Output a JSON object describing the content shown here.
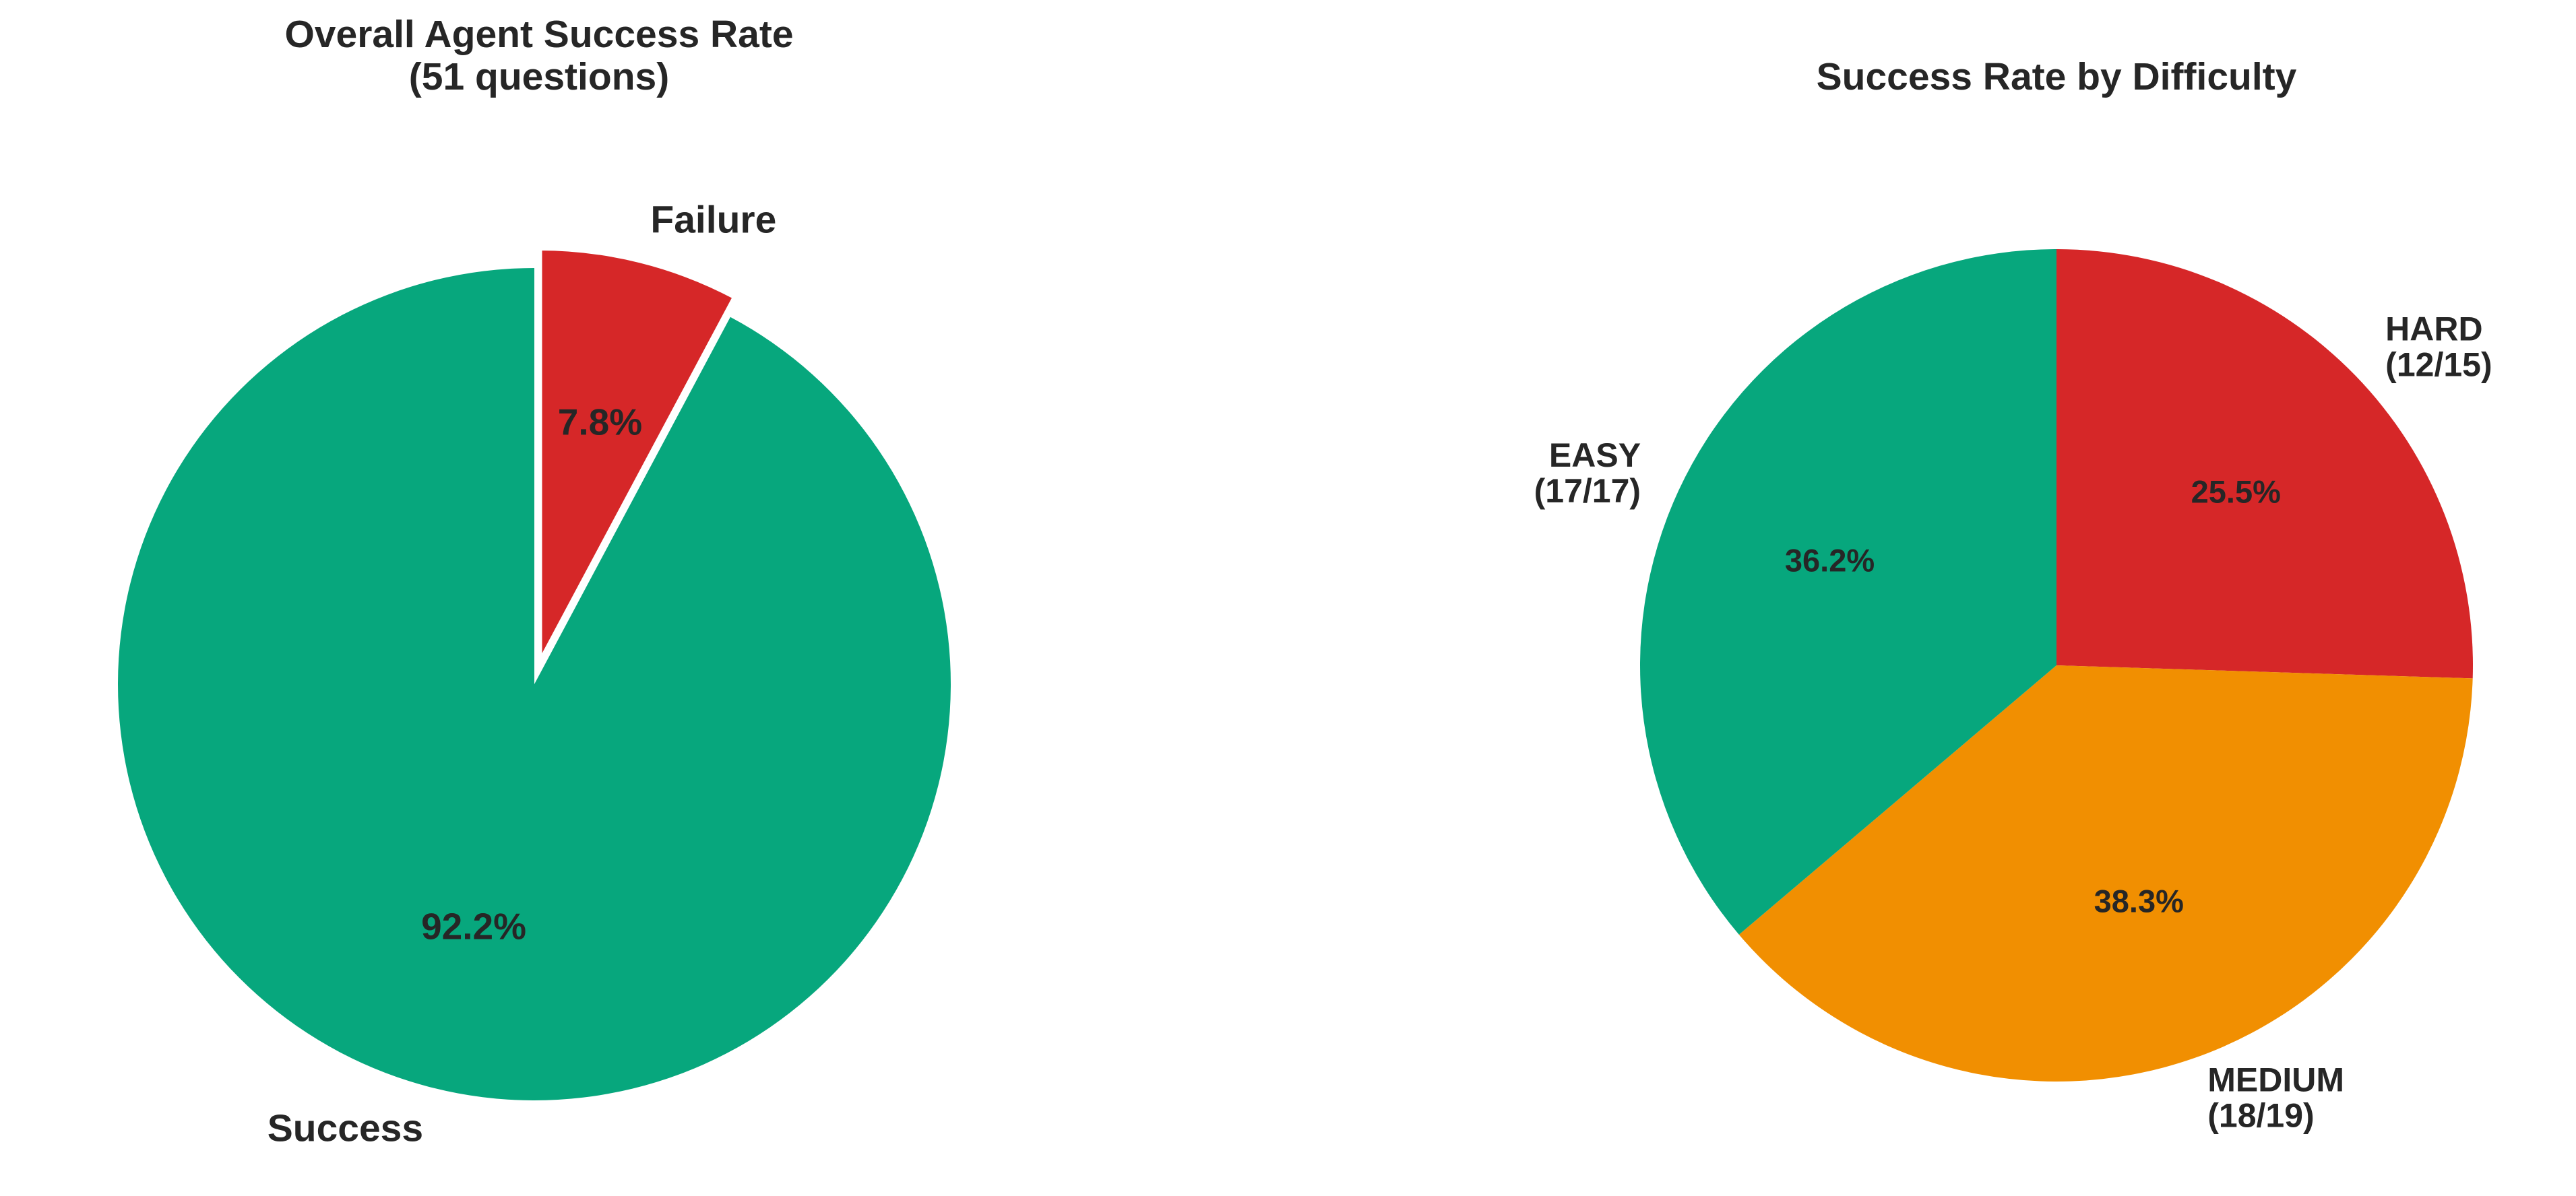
{
  "chart_data": [
    {
      "type": "pie",
      "title_lines": [
        "Overall Agent Success Rate",
        "(51 questions)"
      ],
      "start_angle_deg": 90,
      "direction": "clockwise",
      "explode_label": "Failure",
      "slices": [
        {
          "label": "Failure",
          "value": 7.8,
          "pct_label": "7.8%",
          "color": "#d62728"
        },
        {
          "label": "Success",
          "value": 92.2,
          "pct_label": "92.2%",
          "color": "#07a77d"
        }
      ]
    },
    {
      "type": "pie",
      "title_lines": [
        "Success Rate by Difficulty"
      ],
      "start_angle_deg": 90,
      "direction": "clockwise",
      "slices": [
        {
          "label_lines": [
            "HARD",
            "(12/15)"
          ],
          "value": 25.5,
          "pct_label": "25.5%",
          "color": "#d62728"
        },
        {
          "label_lines": [
            "MEDIUM",
            "(18/19)"
          ],
          "value": 38.3,
          "pct_label": "38.3%",
          "color": "#f18f01"
        },
        {
          "label_lines": [
            "EASY",
            "(17/17)"
          ],
          "value": 36.2,
          "pct_label": "36.2%",
          "color": "#07a77d"
        }
      ]
    }
  ]
}
